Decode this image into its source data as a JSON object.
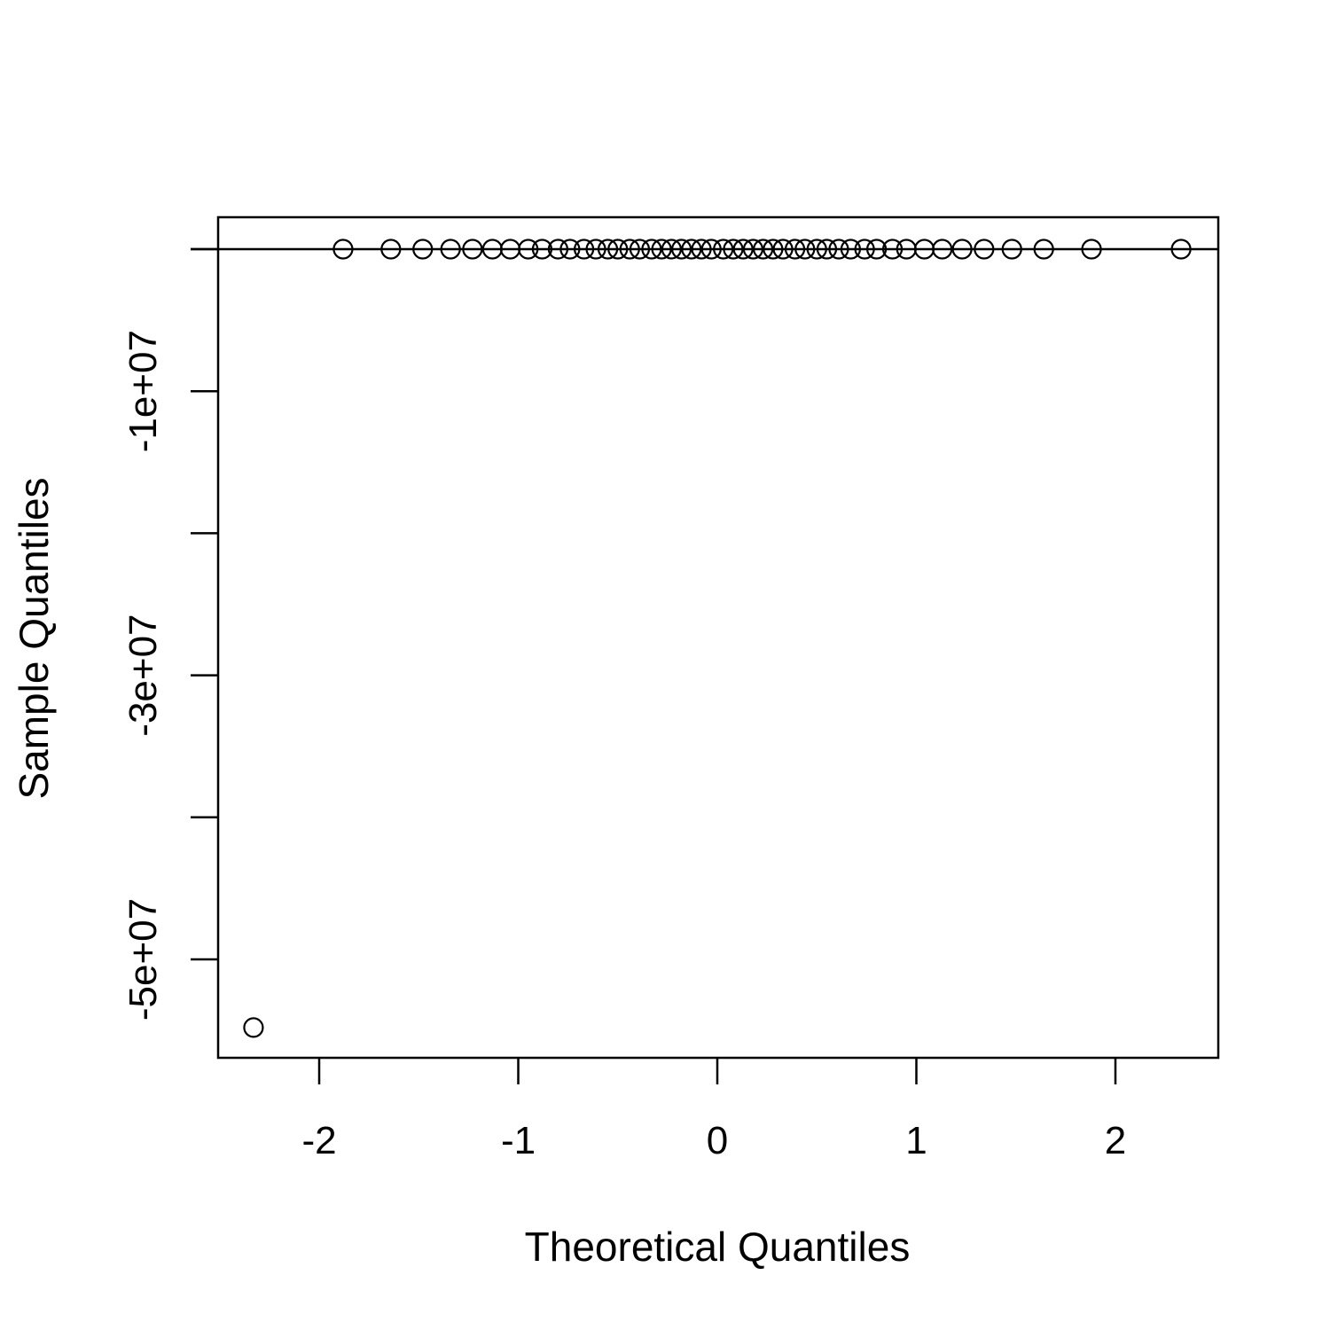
{
  "chart_data": {
    "type": "scatter",
    "title": "",
    "xlabel": "Theoretical Quantiles",
    "ylabel": "Sample Quantiles",
    "xlim": [
      -2.5,
      2.5
    ],
    "ylim": [
      -59400000,
      0
    ],
    "x_ticks": [
      -2,
      -1,
      0,
      1,
      2
    ],
    "x_tick_labels": [
      "-2",
      "-1",
      "0",
      "1",
      "2"
    ],
    "y_ticks": [
      0,
      -10000000,
      -20000000,
      -30000000,
      -40000000,
      -50000000
    ],
    "y_tick_labels": [
      "",
      "-1e+07",
      "",
      "-3e+07",
      "",
      "-5e+07"
    ],
    "reference_line": {
      "type": "horizontal",
      "y": 0
    },
    "grid": false,
    "x": [
      -2.33,
      -1.88,
      -1.64,
      -1.48,
      -1.34,
      -1.23,
      -1.13,
      -1.04,
      -0.95,
      -0.88,
      -0.8,
      -0.74,
      -0.67,
      -0.61,
      -0.55,
      -0.5,
      -0.44,
      -0.39,
      -0.33,
      -0.28,
      -0.23,
      -0.18,
      -0.13,
      -0.08,
      -0.03,
      0.03,
      0.08,
      0.13,
      0.18,
      0.23,
      0.28,
      0.33,
      0.39,
      0.44,
      0.5,
      0.55,
      0.61,
      0.67,
      0.74,
      0.8,
      0.88,
      0.95,
      1.04,
      1.13,
      1.23,
      1.34,
      1.48,
      1.64,
      1.88,
      2.33
    ],
    "y": [
      -54800000,
      0,
      0,
      0,
      0,
      0,
      0,
      0,
      0,
      0,
      0,
      0,
      0,
      0,
      0,
      0,
      0,
      0,
      0,
      0,
      0,
      0,
      0,
      0,
      0,
      0,
      0,
      0,
      0,
      0,
      0,
      0,
      0,
      0,
      0,
      0,
      0,
      0,
      0,
      0,
      0,
      0,
      0,
      0,
      0,
      0,
      0,
      0,
      0,
      0
    ]
  }
}
